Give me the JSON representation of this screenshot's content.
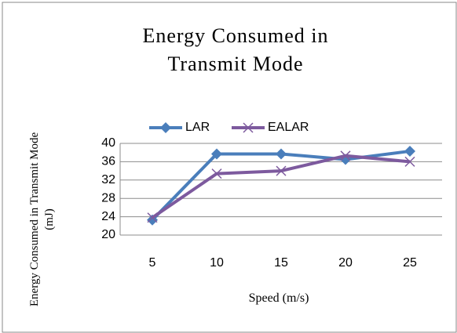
{
  "chart_data": {
    "type": "line",
    "title": "Energy Consumed in Transmit Mode",
    "x_label": "Speed (m/s)",
    "y_label": "Energy Consumed in Transmit Mode (mJ)",
    "categories": [
      "5",
      "10",
      "15",
      "20",
      "25"
    ],
    "series": [
      {
        "name": "LAR",
        "color": "#4a7ebb",
        "marker": "diamond",
        "values": [
          23.3,
          37.7,
          37.7,
          36.5,
          38.3
        ]
      },
      {
        "name": "EALAR",
        "color": "#7d5a9e",
        "marker": "x",
        "values": [
          23.8,
          33.4,
          34.0,
          37.3,
          36.0
        ]
      }
    ],
    "ylim": [
      20,
      40
    ],
    "yticks": [
      20,
      24,
      28,
      32,
      36,
      40
    ],
    "grid": true,
    "legend": "top"
  }
}
